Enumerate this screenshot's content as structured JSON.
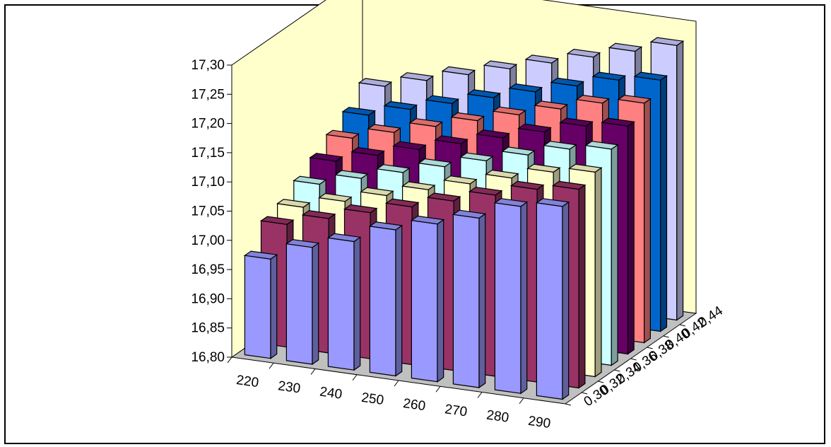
{
  "chart_data": {
    "type": "bar",
    "subtype": "3d-column",
    "title": "",
    "xlabel": "",
    "ylabel": "",
    "ylim": [
      16.8,
      17.3
    ],
    "y_ticks": [
      "16,80",
      "16,85",
      "16,90",
      "16,95",
      "17,00",
      "17,05",
      "17,10",
      "17,15",
      "17,20",
      "17,25",
      "17,30"
    ],
    "categories": [
      "220",
      "230",
      "240",
      "250",
      "260",
      "270",
      "280",
      "290"
    ],
    "depth_labels": [
      "0,30",
      "0,32",
      "0,34",
      "0,36",
      "0,38",
      "0,40",
      "0,42",
      "0,44"
    ],
    "series": [
      {
        "depth": "0,30",
        "color": "#9999ff",
        "values": [
          16.97,
          17.0,
          17.02,
          17.05,
          17.07,
          17.09,
          17.12,
          17.13
        ]
      },
      {
        "depth": "0,32",
        "color": "#993366",
        "values": [
          17.01,
          17.03,
          17.05,
          17.07,
          17.09,
          17.11,
          17.13,
          17.14
        ]
      },
      {
        "depth": "0,34",
        "color": "#ffffcc",
        "values": [
          17.02,
          17.04,
          17.06,
          17.08,
          17.1,
          17.12,
          17.14,
          17.15
        ]
      },
      {
        "depth": "0,36",
        "color": "#ccffff",
        "values": [
          17.04,
          17.06,
          17.08,
          17.1,
          17.12,
          17.14,
          17.16,
          17.17
        ]
      },
      {
        "depth": "0,38",
        "color": "#660066",
        "values": [
          17.06,
          17.08,
          17.1,
          17.12,
          17.14,
          17.16,
          17.18,
          17.19
        ]
      },
      {
        "depth": "0,40",
        "color": "#ff8080",
        "values": [
          17.08,
          17.1,
          17.12,
          17.14,
          17.16,
          17.18,
          17.2,
          17.21
        ]
      },
      {
        "depth": "0,42",
        "color": "#0066cc",
        "values": [
          17.1,
          17.12,
          17.14,
          17.16,
          17.18,
          17.2,
          17.22,
          17.23
        ]
      },
      {
        "depth": "0,44",
        "color": "#ccccff",
        "values": [
          17.13,
          17.15,
          17.17,
          17.19,
          17.21,
          17.23,
          17.25,
          17.27
        ]
      }
    ],
    "wall_color": "#ffffcc",
    "grid": false,
    "legend": "none"
  }
}
